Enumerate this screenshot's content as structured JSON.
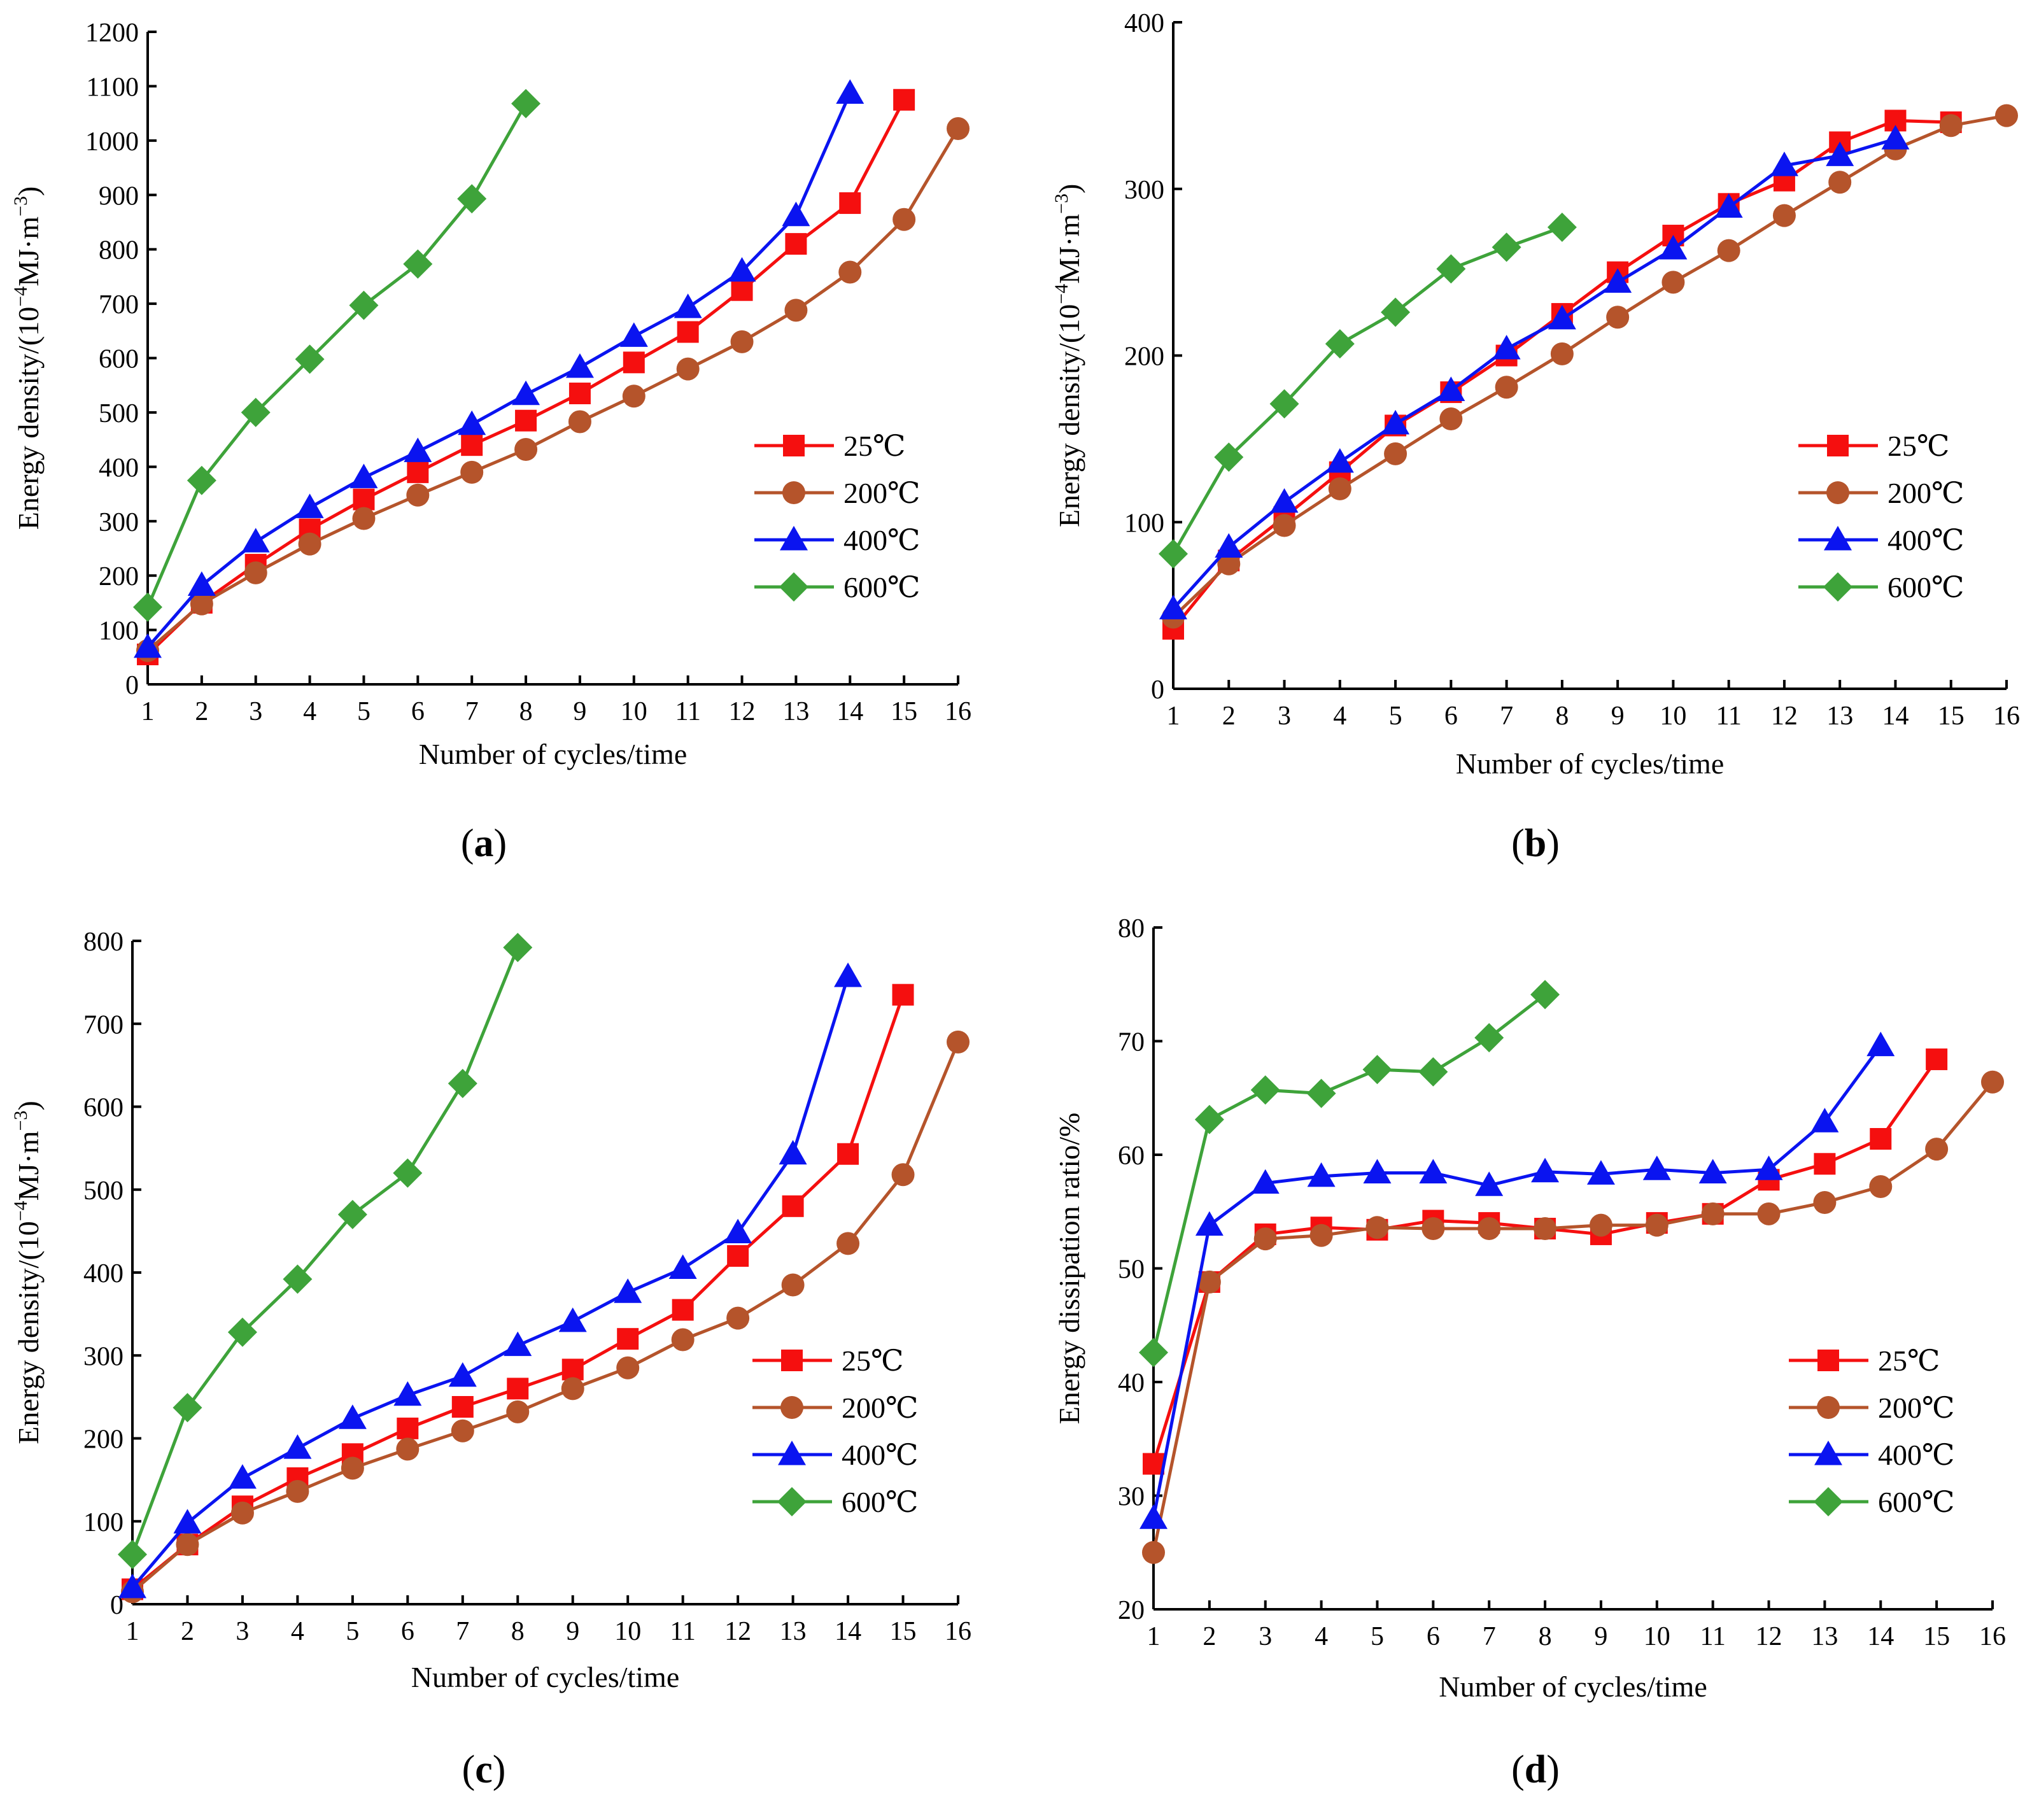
{
  "colors": {
    "25C": "#f50f0f",
    "200C": "#b5542b",
    "400C": "#0a14f0",
    "600C": "#3ea33a",
    "axis": "#000000"
  },
  "chart_data": [
    {
      "id": "a",
      "type": "line",
      "panel_label": "a",
      "xlabel": "Number of cycles/time",
      "ylabel": "Energy density/(10⁻⁴MJ·m⁻³)",
      "ylabel_parts": {
        "prefix": "Energy density/(10",
        "exp1": "−4",
        "mid": "MJ·m",
        "exp2": "−3",
        "suffix": ")"
      },
      "xlim": [
        1,
        16
      ],
      "ylim": [
        0,
        1200
      ],
      "xticks": [
        "1",
        "2",
        "3",
        "4",
        "5",
        "6",
        "7",
        "8",
        "9",
        "10",
        "11",
        "12",
        "13",
        "14",
        "15",
        "16"
      ],
      "yticks": [
        "0",
        "100",
        "200",
        "300",
        "400",
        "500",
        "600",
        "700",
        "800",
        "900",
        "1000",
        "1100",
        "1200"
      ],
      "legend_position": "lower-right",
      "series": [
        {
          "name": "25℃",
          "key": "25C",
          "marker": "square",
          "x": [
            1,
            2,
            3,
            4,
            5,
            6,
            7,
            8,
            9,
            10,
            11,
            12,
            13,
            14,
            15
          ],
          "values": [
            55,
            150,
            220,
            285,
            340,
            390,
            440,
            485,
            535,
            592,
            648,
            725,
            810,
            885,
            1075
          ]
        },
        {
          "name": "200℃",
          "key": "200C",
          "marker": "circle",
          "x": [
            1,
            2,
            3,
            4,
            5,
            6,
            7,
            8,
            9,
            10,
            11,
            12,
            13,
            14,
            15,
            16
          ],
          "values": [
            62,
            148,
            205,
            258,
            305,
            348,
            390,
            432,
            483,
            530,
            580,
            630,
            688,
            758,
            855,
            1022
          ]
        },
        {
          "name": "400℃",
          "key": "400C",
          "marker": "triangle",
          "x": [
            1,
            2,
            3,
            4,
            5,
            6,
            7,
            8,
            9,
            10,
            11,
            12,
            13,
            14
          ],
          "values": [
            68,
            182,
            262,
            325,
            380,
            428,
            478,
            533,
            583,
            640,
            693,
            760,
            862,
            1087
          ]
        },
        {
          "name": "600℃",
          "key": "600C",
          "marker": "diamond",
          "x": [
            1,
            2,
            3,
            4,
            5,
            6,
            7,
            8
          ],
          "values": [
            142,
            375,
            500,
            598,
            697,
            773,
            893,
            1068
          ]
        }
      ]
    },
    {
      "id": "b",
      "type": "line",
      "panel_label": "b",
      "xlabel": "Number of cycles/time",
      "ylabel": "Energy density/(10⁻⁴MJ·m⁻³)",
      "ylabel_parts": {
        "prefix": "Energy density/(10",
        "exp1": "−4",
        "mid": "MJ·m",
        "exp2": "−3",
        "suffix": ")"
      },
      "xlim": [
        1,
        16
      ],
      "ylim": [
        0,
        400
      ],
      "xticks": [
        "1",
        "2",
        "3",
        "4",
        "5",
        "6",
        "7",
        "8",
        "9",
        "10",
        "11",
        "12",
        "13",
        "14",
        "15",
        "16"
      ],
      "yticks": [
        "0",
        "100",
        "200",
        "300",
        "400"
      ],
      "legend_position": "center-right",
      "series": [
        {
          "name": "25℃",
          "key": "25C",
          "marker": "square",
          "x": [
            1,
            2,
            3,
            4,
            5,
            6,
            7,
            8,
            9,
            10,
            11,
            12,
            13,
            14,
            15
          ],
          "values": [
            36,
            77,
            103,
            130,
            158,
            178,
            200,
            225,
            250,
            272,
            291,
            305,
            328,
            341,
            340
          ]
        },
        {
          "name": "200℃",
          "key": "200C",
          "marker": "circle",
          "x": [
            1,
            2,
            3,
            4,
            5,
            6,
            7,
            8,
            9,
            10,
            11,
            12,
            13,
            14,
            15,
            16
          ],
          "values": [
            43,
            75,
            98,
            120,
            141,
            162,
            181,
            201,
            223,
            244,
            263,
            284,
            304,
            324,
            338,
            344
          ]
        },
        {
          "name": "400℃",
          "key": "400C",
          "marker": "triangle",
          "x": [
            1,
            2,
            3,
            4,
            5,
            6,
            7,
            8,
            9,
            10,
            11,
            12,
            13,
            14
          ],
          "values": [
            48,
            85,
            112,
            136,
            159,
            179,
            204,
            222,
            244,
            264,
            289,
            314,
            320,
            330
          ]
        },
        {
          "name": "600℃",
          "key": "600C",
          "marker": "diamond",
          "x": [
            1,
            2,
            3,
            4,
            5,
            6,
            7,
            8
          ],
          "values": [
            81,
            139,
            171,
            207,
            226,
            252,
            265,
            277
          ]
        }
      ]
    },
    {
      "id": "c",
      "type": "line",
      "panel_label": "c",
      "xlabel": "Number of cycles/time",
      "ylabel": "Energy density/(10⁻⁴MJ·m⁻³)",
      "ylabel_parts": {
        "prefix": "Energy density/(10",
        "exp1": "−4",
        "mid": "MJ·m",
        "exp2": "−3",
        "suffix": ")"
      },
      "xlim": [
        1,
        16
      ],
      "ylim": [
        0,
        800
      ],
      "xticks": [
        "1",
        "2",
        "3",
        "4",
        "5",
        "6",
        "7",
        "8",
        "9",
        "10",
        "11",
        "12",
        "13",
        "14",
        "15",
        "16"
      ],
      "yticks": [
        "0",
        "100",
        "200",
        "300",
        "400",
        "500",
        "600",
        "700",
        "800"
      ],
      "legend_position": "lower-right",
      "series": [
        {
          "name": "25℃",
          "key": "25C",
          "marker": "square",
          "x": [
            1,
            2,
            3,
            4,
            5,
            6,
            7,
            8,
            9,
            10,
            11,
            12,
            13,
            14,
            15
          ],
          "values": [
            18,
            72,
            118,
            152,
            181,
            212,
            238,
            260,
            283,
            320,
            355,
            420,
            480,
            543,
            735
          ]
        },
        {
          "name": "200℃",
          "key": "200C",
          "marker": "circle",
          "x": [
            1,
            2,
            3,
            4,
            5,
            6,
            7,
            8,
            9,
            10,
            11,
            12,
            13,
            14,
            15,
            16
          ],
          "values": [
            15,
            72,
            110,
            136,
            164,
            187,
            209,
            232,
            260,
            285,
            319,
            345,
            385,
            435,
            518,
            678
          ]
        },
        {
          "name": "400℃",
          "key": "400C",
          "marker": "triangle",
          "x": [
            1,
            2,
            3,
            4,
            5,
            6,
            7,
            8,
            9,
            10,
            11,
            12,
            13,
            14
          ],
          "values": [
            20,
            98,
            152,
            188,
            224,
            252,
            275,
            312,
            341,
            376,
            405,
            448,
            543,
            757
          ]
        },
        {
          "name": "600℃",
          "key": "600C",
          "marker": "diamond",
          "x": [
            1,
            2,
            3,
            4,
            5,
            6,
            7,
            8
          ],
          "values": [
            60,
            237,
            328,
            392,
            470,
            520,
            628,
            792
          ]
        }
      ]
    },
    {
      "id": "d",
      "type": "line",
      "panel_label": "d",
      "xlabel": "Number of cycles/time",
      "ylabel": "Energy dissipation ratio/%",
      "xlim": [
        1,
        16
      ],
      "ylim": [
        20,
        80
      ],
      "xticks": [
        "1",
        "2",
        "3",
        "4",
        "5",
        "6",
        "7",
        "8",
        "9",
        "10",
        "11",
        "12",
        "13",
        "14",
        "15",
        "16"
      ],
      "yticks": [
        "20",
        "30",
        "40",
        "50",
        "60",
        "70",
        "80"
      ],
      "legend_position": "lower-right",
      "series": [
        {
          "name": "25℃",
          "key": "25C",
          "marker": "square",
          "x": [
            1,
            2,
            3,
            4,
            5,
            6,
            7,
            8,
            9,
            10,
            11,
            12,
            13,
            14,
            15
          ],
          "values": [
            32.8,
            48.8,
            53.0,
            53.6,
            53.4,
            54.2,
            54.0,
            53.5,
            53.0,
            54.0,
            54.8,
            57.8,
            59.2,
            61.4,
            68.4
          ]
        },
        {
          "name": "200℃",
          "key": "200C",
          "marker": "circle",
          "x": [
            1,
            2,
            3,
            4,
            5,
            6,
            7,
            8,
            9,
            10,
            11,
            12,
            13,
            14,
            15,
            16
          ],
          "values": [
            25.0,
            48.8,
            52.6,
            52.9,
            53.6,
            53.5,
            53.5,
            53.5,
            53.8,
            53.8,
            54.8,
            54.8,
            55.8,
            57.2,
            60.5,
            66.4
          ]
        },
        {
          "name": "400℃",
          "key": "400C",
          "marker": "triangle",
          "x": [
            1,
            2,
            3,
            4,
            5,
            6,
            7,
            8,
            9,
            10,
            11,
            12,
            13,
            14
          ],
          "values": [
            28.0,
            53.8,
            57.5,
            58.1,
            58.4,
            58.4,
            57.3,
            58.5,
            58.3,
            58.7,
            58.4,
            58.7,
            62.9,
            69.6
          ]
        },
        {
          "name": "600℃",
          "key": "600C",
          "marker": "diamond",
          "x": [
            1,
            2,
            3,
            4,
            5,
            6,
            7,
            8
          ],
          "values": [
            42.6,
            63.1,
            65.7,
            65.4,
            67.5,
            67.3,
            70.3,
            74.1
          ]
        }
      ]
    }
  ]
}
